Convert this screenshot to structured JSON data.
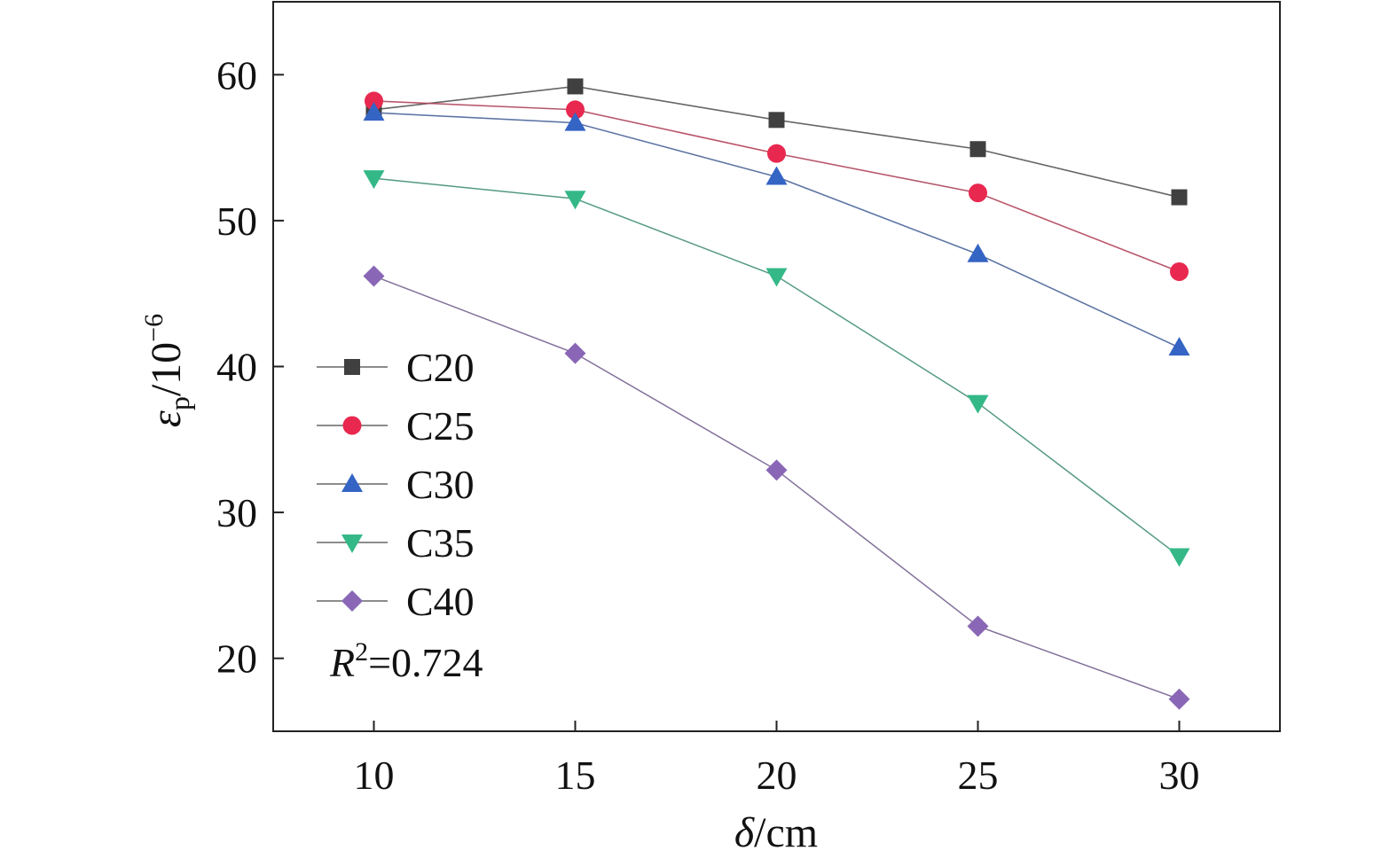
{
  "chart_data": {
    "type": "line",
    "x": [
      10,
      15,
      20,
      25,
      30
    ],
    "x_ticks": [
      "10",
      "15",
      "20",
      "25",
      "30"
    ],
    "y_ticks": [
      "20",
      "30",
      "40",
      "50",
      "60"
    ],
    "xlim": [
      7.5,
      32.5
    ],
    "ylim": [
      15,
      65
    ],
    "xlabel": {
      "symbol": "δ",
      "unit": "/cm"
    },
    "ylabel": {
      "symbol": "ε",
      "sub": "p",
      "unit": "/10",
      "sup": "−6"
    },
    "grid": false,
    "legend_position": "left",
    "series": [
      {
        "name": "C20",
        "color": "#404040",
        "marker": "square",
        "values": [
          57.6,
          59.2,
          56.9,
          54.9,
          51.6
        ]
      },
      {
        "name": "C25",
        "color": "#e8284f",
        "marker": "circle",
        "values": [
          58.2,
          57.6,
          54.6,
          51.9,
          46.5
        ]
      },
      {
        "name": "C30",
        "color": "#3464c4",
        "marker": "triangle-up",
        "values": [
          57.4,
          56.7,
          53.0,
          47.7,
          41.3
        ]
      },
      {
        "name": "C35",
        "color": "#34b888",
        "marker": "triangle-down",
        "values": [
          52.9,
          51.5,
          46.2,
          37.5,
          27.0
        ]
      },
      {
        "name": "C40",
        "color": "#8a67b6",
        "marker": "diamond",
        "values": [
          46.2,
          40.9,
          32.9,
          22.2,
          17.2
        ]
      }
    ],
    "annotation": {
      "var": "R",
      "sup": "2",
      "text": "=0.724"
    }
  }
}
